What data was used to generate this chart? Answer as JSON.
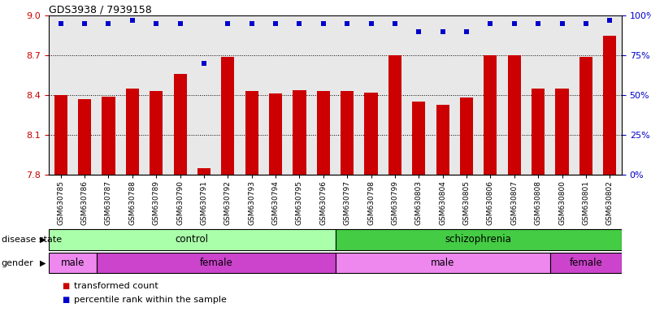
{
  "title": "GDS3938 / 7939158",
  "samples": [
    "GSM630785",
    "GSM630786",
    "GSM630787",
    "GSM630788",
    "GSM630789",
    "GSM630790",
    "GSM630791",
    "GSM630792",
    "GSM630793",
    "GSM630794",
    "GSM630795",
    "GSM630796",
    "GSM630797",
    "GSM630798",
    "GSM630799",
    "GSM630803",
    "GSM630804",
    "GSM630805",
    "GSM630806",
    "GSM630807",
    "GSM630808",
    "GSM630800",
    "GSM630801",
    "GSM630802"
  ],
  "bar_values": [
    8.4,
    8.37,
    8.39,
    8.45,
    8.43,
    8.56,
    7.85,
    8.69,
    8.43,
    8.41,
    8.44,
    8.43,
    8.43,
    8.42,
    8.7,
    8.35,
    8.33,
    8.38,
    8.7,
    8.7,
    8.45,
    8.45,
    8.69,
    8.85
  ],
  "percentile_values": [
    95,
    95,
    95,
    97,
    95,
    95,
    70,
    95,
    95,
    95,
    95,
    95,
    95,
    95,
    95,
    90,
    90,
    90,
    95,
    95,
    95,
    95,
    95,
    97
  ],
  "bar_color": "#cc0000",
  "dot_color": "#0000cc",
  "ylim_left": [
    7.8,
    9.0
  ],
  "ylim_right": [
    0,
    100
  ],
  "yticks_left": [
    7.8,
    8.1,
    8.4,
    8.7,
    9.0
  ],
  "yticks_right": [
    0,
    25,
    50,
    75,
    100
  ],
  "ytick_labels_right": [
    "0%",
    "25%",
    "50%",
    "75%",
    "100%"
  ],
  "hgrid_lines": [
    8.1,
    8.4,
    8.7
  ],
  "disease_state_groups": [
    {
      "label": "control",
      "start": 0,
      "end": 12,
      "color": "#aaffaa"
    },
    {
      "label": "schizophrenia",
      "start": 12,
      "end": 24,
      "color": "#44cc44"
    }
  ],
  "gender_groups": [
    {
      "label": "male",
      "start": 0,
      "end": 2,
      "color": "#ee88ee"
    },
    {
      "label": "female",
      "start": 2,
      "end": 12,
      "color": "#cc44cc"
    },
    {
      "label": "male",
      "start": 12,
      "end": 21,
      "color": "#ee88ee"
    },
    {
      "label": "female",
      "start": 21,
      "end": 24,
      "color": "#cc44cc"
    }
  ],
  "legend_items": [
    {
      "label": "transformed count",
      "color": "#cc0000"
    },
    {
      "label": "percentile rank within the sample",
      "color": "#0000cc"
    }
  ],
  "bar_width": 0.55,
  "plot_bg_color": "#e8e8e8",
  "fig_bg_color": "#ffffff"
}
